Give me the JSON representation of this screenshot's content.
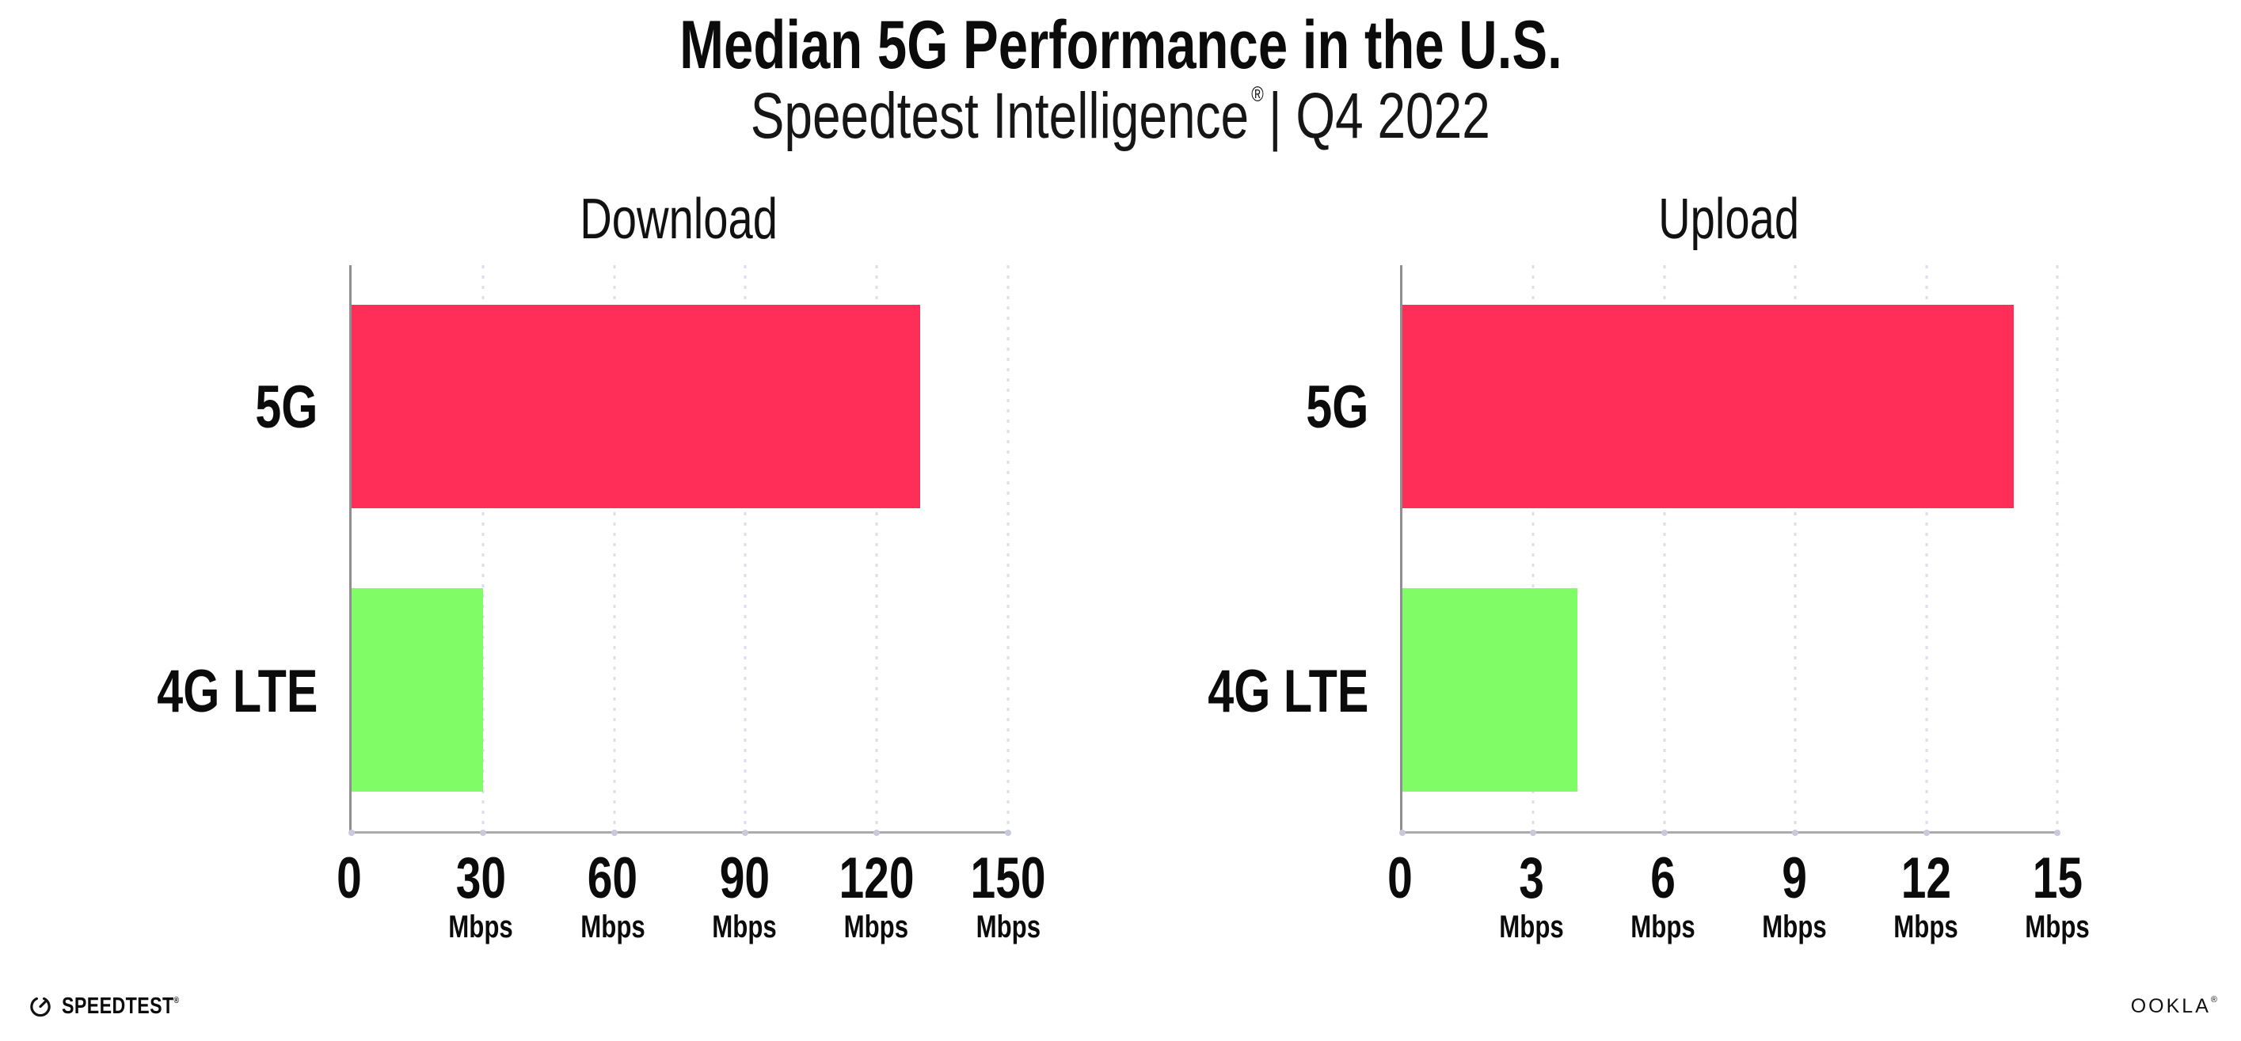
{
  "header": {
    "title": "Median 5G Performance in the U.S.",
    "subtitle_brand": "Speedtest Intelligence",
    "subtitle_reg": "®",
    "subtitle_rest": "| Q4 2022"
  },
  "footer": {
    "speedtest_wordmark": "SPEEDTEST",
    "speedtest_reg": "®",
    "ookla_wordmark": "OOKLA",
    "ookla_reg": "®"
  },
  "colors": {
    "bar_5g": "#FF2E58",
    "bar_4g_lte": "#80FC66",
    "y_axis_line": "#8F8F8F",
    "x_axis_line": "#ABABAB",
    "grid_dot": "#DEDDEA",
    "axis_tick_dot": "#C9C9DB",
    "text": "#0B0B0B"
  },
  "chart_data": [
    {
      "type": "bar",
      "orientation": "horizontal",
      "title": "Download",
      "categories": [
        "5G",
        "4G LTE"
      ],
      "values": [
        130,
        30
      ],
      "unit": "Mbps",
      "xlim": [
        0,
        150
      ],
      "ticks": [
        0,
        30,
        60,
        90,
        120,
        150
      ],
      "bar_colors": [
        "#FF2E58",
        "#80FC66"
      ],
      "grid": "dotted-vertical-at-ticks",
      "legend": "none"
    },
    {
      "type": "bar",
      "orientation": "horizontal",
      "title": "Upload",
      "categories": [
        "5G",
        "4G LTE"
      ],
      "values": [
        14,
        4
      ],
      "unit": "Mbps",
      "xlim": [
        0,
        15
      ],
      "ticks": [
        0,
        3,
        6,
        9,
        12,
        15
      ],
      "bar_colors": [
        "#FF2E58",
        "#80FC66"
      ],
      "grid": "dotted-vertical-at-ticks",
      "legend": "none"
    }
  ]
}
